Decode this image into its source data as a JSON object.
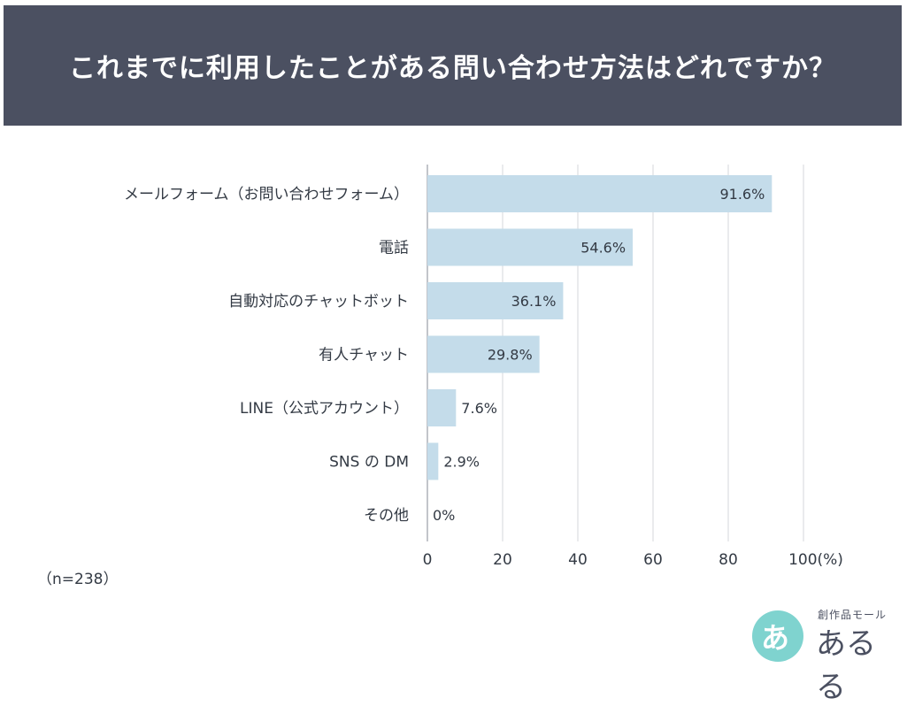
{
  "header": {
    "title": "これまでに利用したことがある問い合わせ方法はどれですか？"
  },
  "footnote": "（n=238）",
  "logo": {
    "mark": "あ",
    "subtitle": "創作品モール",
    "name": "あるる"
  },
  "colors": {
    "banner": "#4b5061",
    "bar": "#c4dcea",
    "axis_text": "#333a44",
    "grid": "#d5d7db"
  },
  "chart_data": {
    "type": "bar",
    "orientation": "horizontal",
    "title": "これまでに利用したことがある問い合わせ方法はどれですか？",
    "categories": [
      "メールフォーム（お問い合わせフォーム）",
      "電話",
      "自動対応のチャットボット",
      "有人チャット",
      "LINE（公式アカウント）",
      "SNS の DM",
      "その他"
    ],
    "values": [
      91.6,
      54.6,
      36.1,
      29.8,
      7.6,
      2.9,
      0
    ],
    "value_labels": [
      "91.6%",
      "54.6%",
      "36.1%",
      "29.8%",
      "7.6%",
      "2.9%",
      "0%"
    ],
    "xlim": [
      0,
      100
    ],
    "x_ticks": [
      "0",
      "20",
      "40",
      "60",
      "80",
      "100(%)"
    ],
    "x_tick_values": [
      0,
      20,
      40,
      60,
      80,
      100
    ],
    "grid": true,
    "legend": "none"
  }
}
